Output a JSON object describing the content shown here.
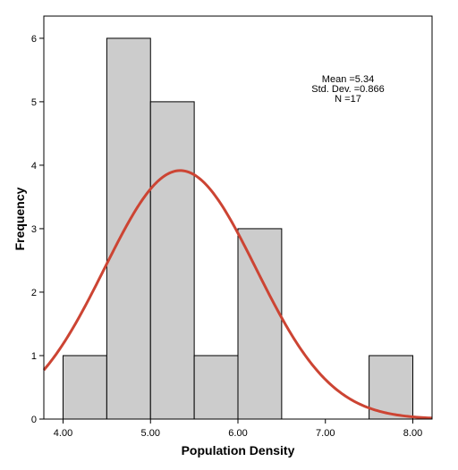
{
  "chart_data": {
    "type": "bar",
    "subtype": "histogram",
    "xlabel": "Population Density",
    "ylabel": "Frequency",
    "bins": [
      {
        "start": 4.0,
        "end": 4.5,
        "count": 1
      },
      {
        "start": 4.5,
        "end": 5.0,
        "count": 6
      },
      {
        "start": 5.0,
        "end": 5.5,
        "count": 5
      },
      {
        "start": 5.5,
        "end": 6.0,
        "count": 1
      },
      {
        "start": 6.0,
        "end": 6.5,
        "count": 3
      },
      {
        "start": 6.5,
        "end": 7.0,
        "count": 0
      },
      {
        "start": 7.0,
        "end": 7.5,
        "count": 0
      },
      {
        "start": 7.5,
        "end": 8.0,
        "count": 1
      }
    ],
    "x_ticks": [
      "4.00",
      "5.00",
      "6.00",
      "7.00",
      "8.00"
    ],
    "x_tick_values": [
      4,
      5,
      6,
      7,
      8
    ],
    "y_ticks": [
      "0",
      "1",
      "2",
      "3",
      "4",
      "5",
      "6"
    ],
    "y_tick_values": [
      0,
      1,
      2,
      3,
      4,
      5,
      6
    ],
    "xlim": [
      3.78,
      8.22
    ],
    "ylim": [
      0,
      6.35
    ],
    "grid": false,
    "normal_curve": {
      "mean": 5.34,
      "std": 0.866,
      "n": 17,
      "bin_width": 0.5
    },
    "stats": {
      "mean_text": "Mean =5.34",
      "std_text": "Std. Dev. =0.866",
      "n_text": "N =17"
    },
    "colors": {
      "bar_fill": "#cccccc",
      "bar_stroke": "#000000",
      "curve": "#cc4433"
    }
  }
}
